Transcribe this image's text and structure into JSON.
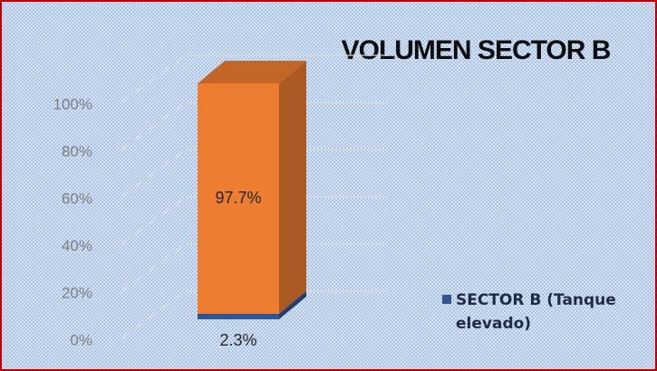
{
  "chart_data": {
    "type": "bar3d_stacked",
    "title": "VOLUMEN SECTOR B",
    "categories": [
      null
    ],
    "series": [
      {
        "name": "SECTOR B (Tanque elevado)",
        "color": "#2f5597",
        "values": [
          2.3
        ],
        "value_labels": [
          "2.3%"
        ]
      },
      {
        "color": "#ed7d31",
        "values": [
          97.7
        ],
        "value_labels": [
          "97.7%"
        ]
      }
    ],
    "ylim": [
      0,
      100
    ],
    "yticks": [
      {
        "value": 0,
        "label": "0%"
      },
      {
        "value": 20,
        "label": "20%"
      },
      {
        "value": 40,
        "label": "40%"
      },
      {
        "value": 60,
        "label": "60%"
      },
      {
        "value": 80,
        "label": "80%"
      },
      {
        "value": 100,
        "label": "100%"
      }
    ],
    "grid": true,
    "legend": "right"
  }
}
